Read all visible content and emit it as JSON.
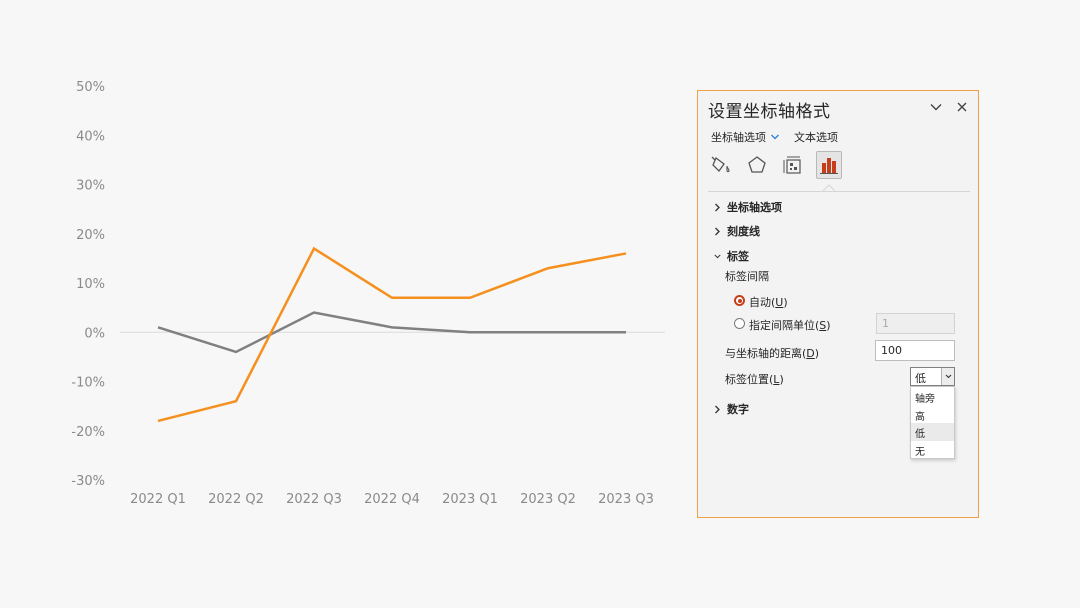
{
  "chart_data": {
    "type": "line",
    "categories": [
      "2022 Q1",
      "2022 Q2",
      "2022 Q3",
      "2022 Q4",
      "2023 Q1",
      "2023 Q2",
      "2023 Q3"
    ],
    "series": [
      {
        "values": [
          1,
          -4,
          4,
          1,
          0,
          0,
          0
        ],
        "color": "#808080"
      },
      {
        "values": [
          -18,
          -14,
          17,
          7,
          7,
          13,
          16
        ],
        "color": "#f5901e"
      }
    ],
    "y_ticks": [
      "50%",
      "40%",
      "30%",
      "20%",
      "10%",
      "0%",
      "-10%",
      "-20%",
      "-30%"
    ],
    "ylim": [
      -30,
      50
    ],
    "grid": false
  },
  "panel": {
    "title": "设置坐标轴格式",
    "tabs": {
      "axis_options": "坐标轴选项",
      "text_options": "文本选项"
    },
    "icons": [
      "fill-line-icon",
      "effects-pentagon-icon",
      "size-properties-icon",
      "axis-options-bar-icon"
    ],
    "sections": {
      "axis_options": "坐标轴选项",
      "tick_marks": "刻度线",
      "labels": "标签",
      "number": "数字"
    },
    "labels": {
      "interval_heading": "标签间隔",
      "auto": "自动(",
      "auto_key": "U",
      "specify": "指定间隔单位(",
      "specify_key": "S",
      "specify_value": "1",
      "distance": "与坐标轴的距离(",
      "distance_key": "D",
      "distance_value": "100",
      "position": "标签位置(",
      "position_key": "L",
      "position_selected": "低",
      "position_options": [
        "轴旁",
        "高",
        "低",
        "无"
      ]
    },
    "colors": {
      "accent": "#c5401a",
      "border": "#f0a04b"
    }
  }
}
